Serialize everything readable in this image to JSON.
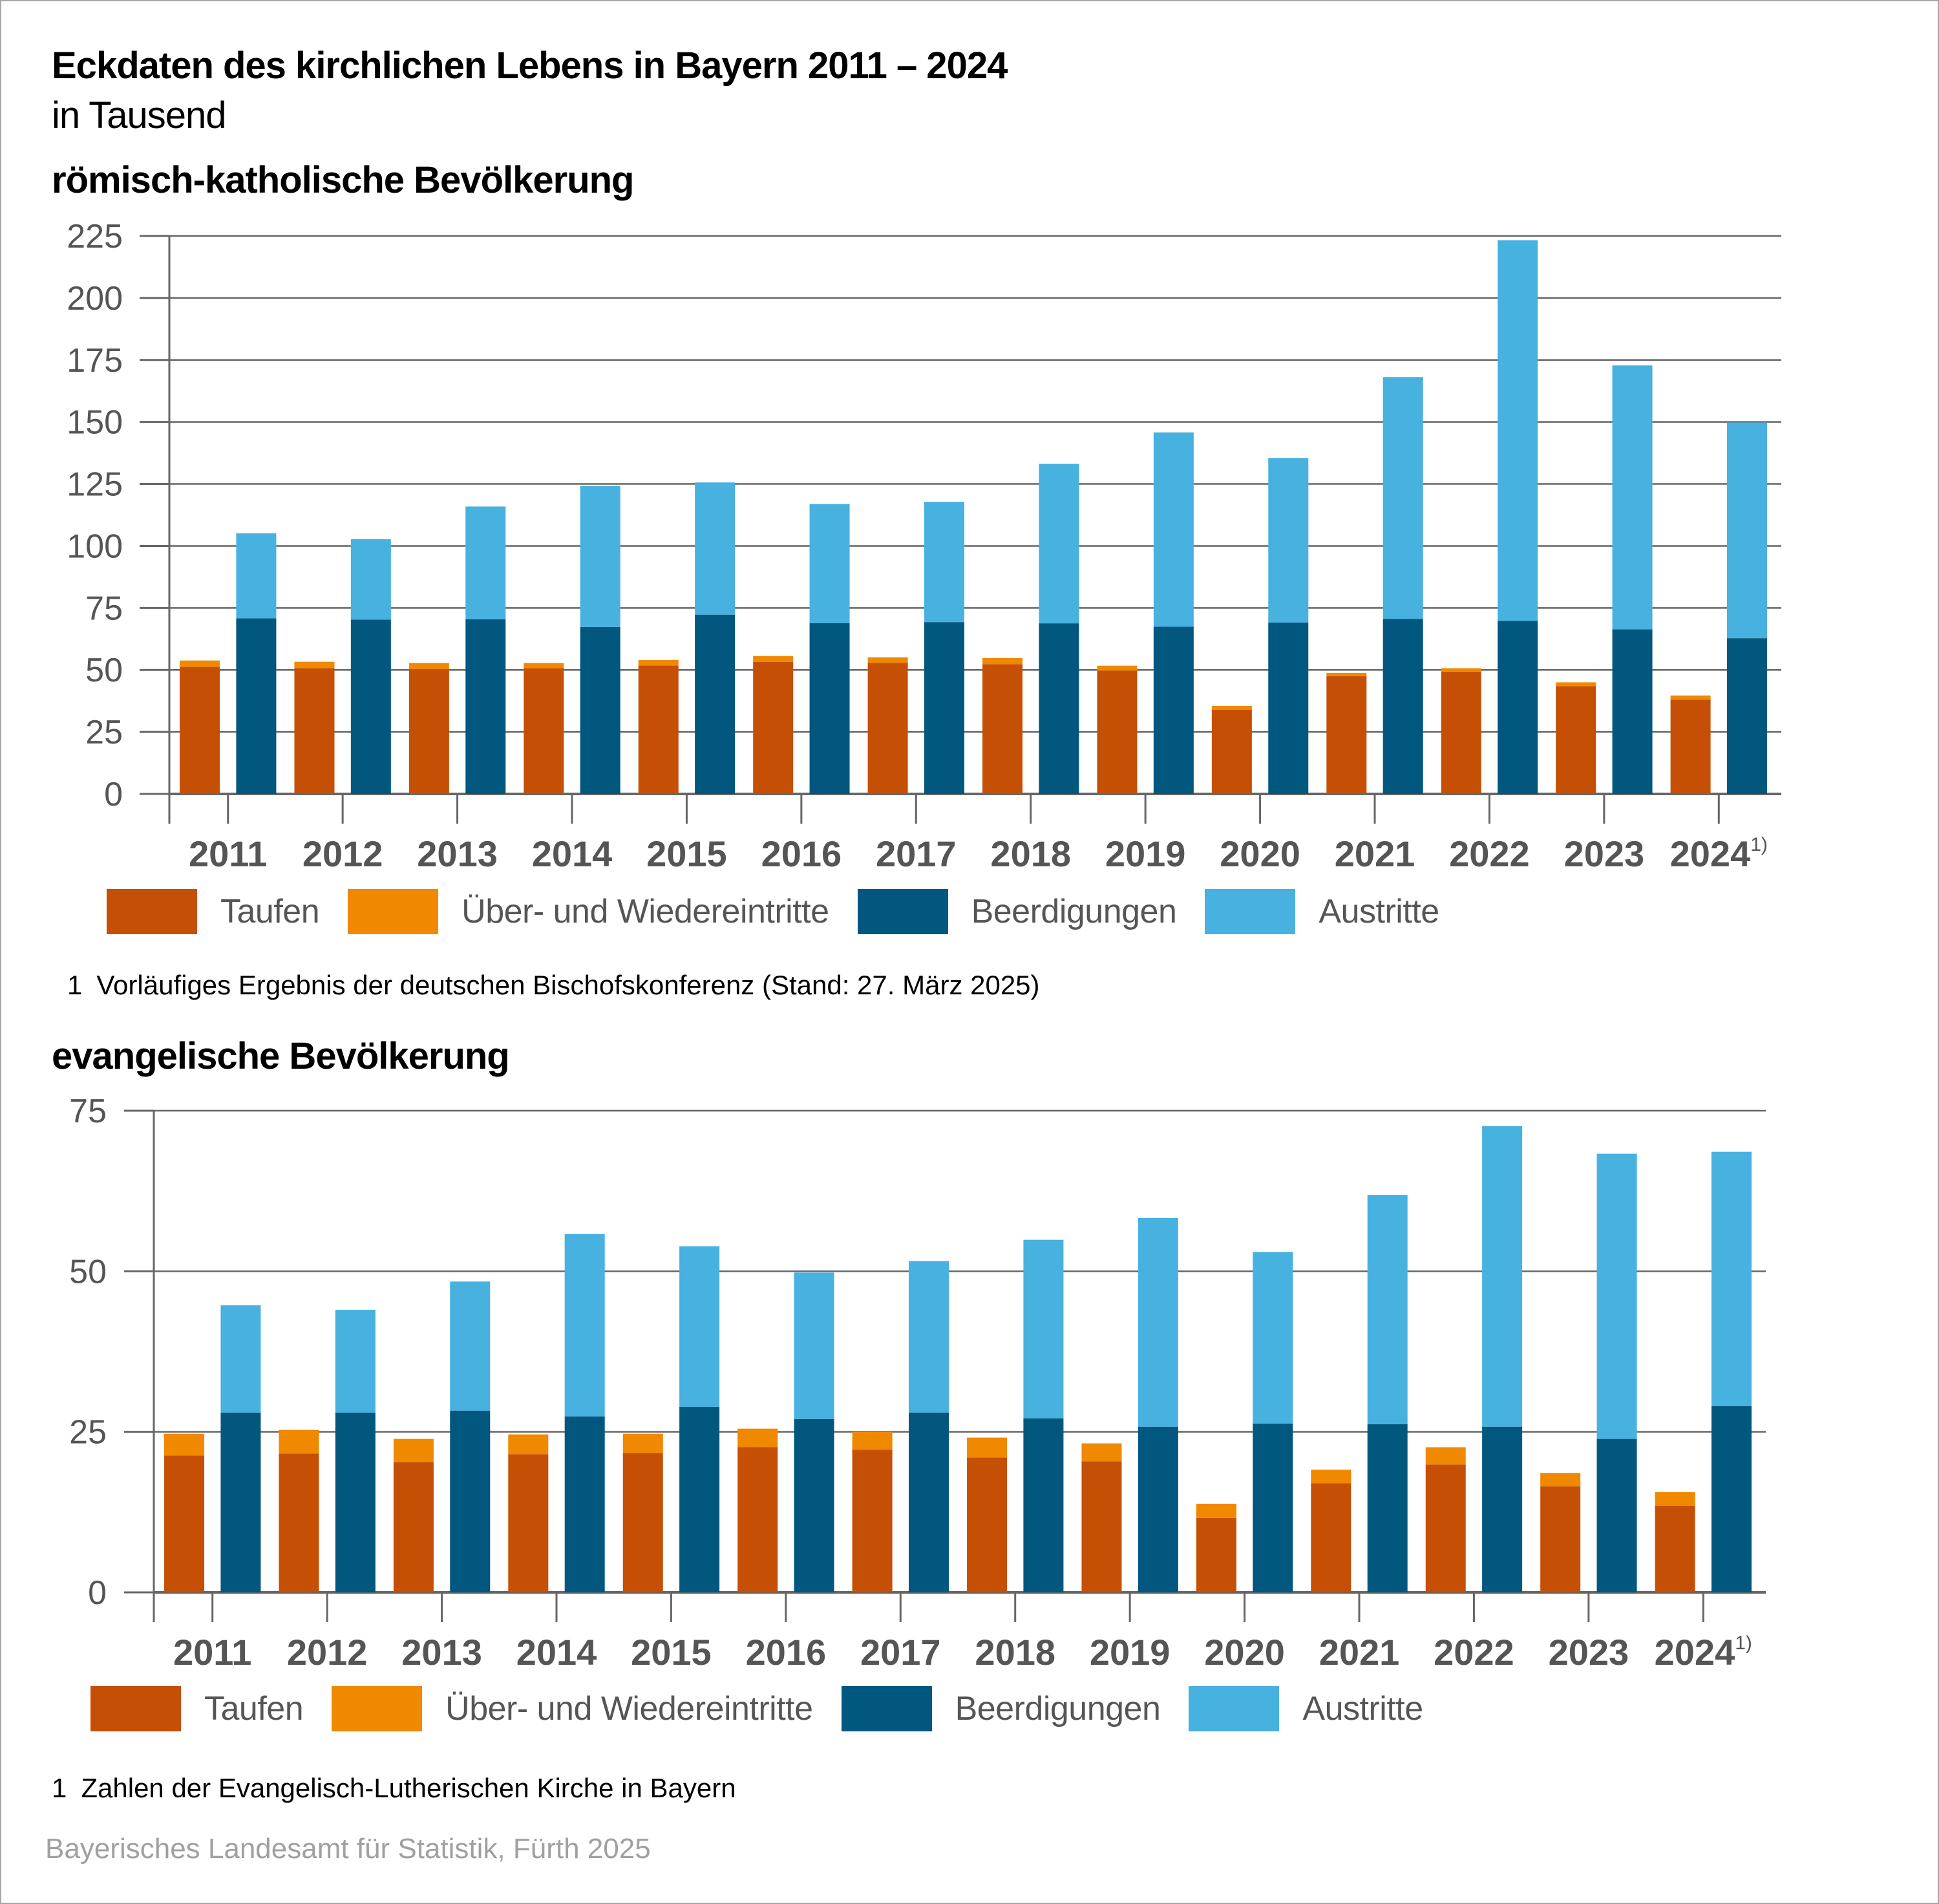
{
  "header": {
    "title": "Eckdaten des kirchlichen Lebens in Bayern 2011 – 2024",
    "subtitle": "in Tausend"
  },
  "colors": {
    "taufen": "#c64f06",
    "eintritte": "#f08800",
    "beerdigungen": "#02577e",
    "austritte": "#47b1df",
    "grid": "#666666",
    "tick_text": "#555555"
  },
  "legend": [
    {
      "key": "taufen",
      "label": "Taufen"
    },
    {
      "key": "eintritte",
      "label": "Über- und Wiedereintritte"
    },
    {
      "key": "beerdigungen",
      "label": "Beerdigungen"
    },
    {
      "key": "austritte",
      "label": "Austritte"
    }
  ],
  "katholisch": {
    "section_title": "römisch-katholische Bevölkerung",
    "footnote_num": "1",
    "footnote": "Vorläufiges Ergebnis der deutschen Bischofskonferenz (Stand: 27. März 2025)"
  },
  "evangelisch": {
    "section_title": "evangelische Bevölkerung",
    "footnote_num": "1",
    "footnote": "Zahlen der Evangelisch-Lutherischen Kirche in Bayern"
  },
  "source": "Bayerisches Landesamt für Statistik, Fürth 2025",
  "chart_data": [
    {
      "type": "bar",
      "title": "römisch-katholische Bevölkerung",
      "unit": "in Tausend",
      "stacking": "two stacks per year: [Taufen + Über- und Wiedereintritte], [Beerdigungen + Austritte]",
      "categories": [
        "2011",
        "2012",
        "2013",
        "2014",
        "2015",
        "2016",
        "2017",
        "2018",
        "2019",
        "2020",
        "2021",
        "2022",
        "2023",
        "2024"
      ],
      "category_labels": [
        "2011",
        "2012",
        "2013",
        "2014",
        "2015",
        "2016",
        "2017",
        "2018",
        "2019",
        "2020",
        "2021",
        "2022",
        "2023",
        "2024"
      ],
      "category_superscript": {
        "2024": "1)"
      },
      "yticks": [
        0,
        25,
        50,
        75,
        100,
        125,
        150,
        175,
        200,
        225
      ],
      "ylim": [
        0,
        225
      ],
      "grid": true,
      "legend_position": "bottom",
      "series": [
        {
          "name": "Taufen",
          "stack": "a",
          "values": [
            51.2,
            50.7,
            50.3,
            50.7,
            51.8,
            53.2,
            52.8,
            52.3,
            49.7,
            33.9,
            47.5,
            49.3,
            43.4,
            38.0
          ]
        },
        {
          "name": "Über- und Wiedereintritte",
          "stack": "a",
          "values": [
            2.6,
            2.6,
            2.5,
            2.1,
            2.2,
            2.4,
            2.3,
            2.5,
            2.0,
            1.6,
            1.3,
            1.4,
            1.6,
            1.7
          ]
        },
        {
          "name": "Beerdigungen",
          "stack": "b",
          "values": [
            70.8,
            70.3,
            70.4,
            67.3,
            72.3,
            68.9,
            69.3,
            68.8,
            67.4,
            69.1,
            70.6,
            69.8,
            66.4,
            62.8
          ]
        },
        {
          "name": "Austritte",
          "stack": "b",
          "values": [
            34.3,
            32.4,
            45.5,
            56.8,
            53.3,
            48.0,
            48.5,
            64.3,
            78.4,
            66.4,
            97.5,
            153.5,
            106.4,
            87.0
          ]
        }
      ]
    },
    {
      "type": "bar",
      "title": "evangelische Bevölkerung",
      "unit": "in Tausend",
      "stacking": "two stacks per year: [Taufen + Über- und Wiedereintritte], [Beerdigungen + Austritte]",
      "categories": [
        "2011",
        "2012",
        "2013",
        "2014",
        "2015",
        "2016",
        "2017",
        "2018",
        "2019",
        "2020",
        "2021",
        "2022",
        "2023",
        "2024"
      ],
      "category_labels": [
        "2011",
        "2012",
        "2013",
        "2014",
        "2015",
        "2016",
        "2017",
        "2018",
        "2019",
        "2020",
        "2021",
        "2022",
        "2023",
        "2024"
      ],
      "category_superscript": {
        "2024": "1)"
      },
      "yticks": [
        0,
        25,
        50,
        75
      ],
      "ylim": [
        0,
        75
      ],
      "grid": true,
      "legend_position": "bottom",
      "series": [
        {
          "name": "Taufen",
          "stack": "a",
          "values": [
            21.3,
            21.6,
            20.3,
            21.5,
            21.7,
            22.6,
            22.2,
            21.0,
            20.4,
            11.6,
            17.0,
            19.9,
            16.5,
            13.5
          ]
        },
        {
          "name": "Über- und Wiedereintritte",
          "stack": "a",
          "values": [
            3.4,
            3.7,
            3.6,
            3.1,
            3.0,
            2.9,
            2.8,
            3.1,
            2.8,
            2.2,
            2.1,
            2.7,
            2.1,
            2.1
          ]
        },
        {
          "name": "Beerdigungen",
          "stack": "b",
          "values": [
            28.0,
            28.0,
            28.3,
            27.4,
            28.9,
            27.0,
            28.0,
            27.1,
            25.8,
            26.3,
            26.2,
            25.8,
            23.9,
            29.0
          ]
        },
        {
          "name": "Austritte",
          "stack": "b",
          "values": [
            16.7,
            16.0,
            20.1,
            28.4,
            25.0,
            22.8,
            23.6,
            27.8,
            32.5,
            26.7,
            35.7,
            46.8,
            44.4,
            39.6
          ]
        }
      ]
    }
  ]
}
